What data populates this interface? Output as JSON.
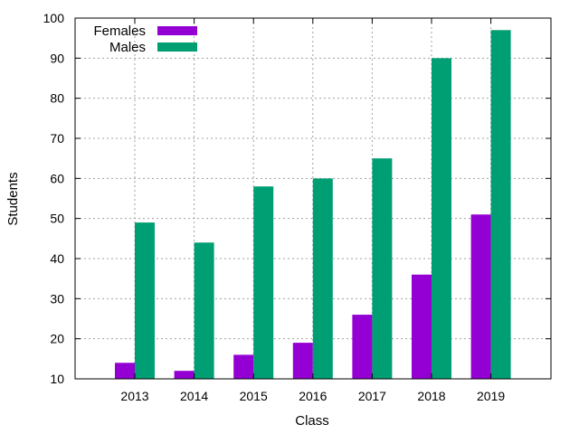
{
  "chart_data": {
    "type": "bar",
    "title": "",
    "xlabel": "Class",
    "ylabel": "Students",
    "categories": [
      "2013",
      "2014",
      "2015",
      "2016",
      "2017",
      "2018",
      "2019"
    ],
    "series": [
      {
        "name": "Females",
        "color": "#9400d3",
        "values": [
          14,
          12,
          16,
          19,
          26,
          36,
          51
        ]
      },
      {
        "name": "Males",
        "color": "#009e73",
        "values": [
          49,
          44,
          58,
          60,
          65,
          90,
          97
        ]
      }
    ],
    "ylim": [
      10,
      100
    ],
    "yticks": [
      10,
      20,
      30,
      40,
      50,
      60,
      70,
      80,
      90,
      100
    ],
    "grid": true,
    "legend_position": "top-left"
  }
}
